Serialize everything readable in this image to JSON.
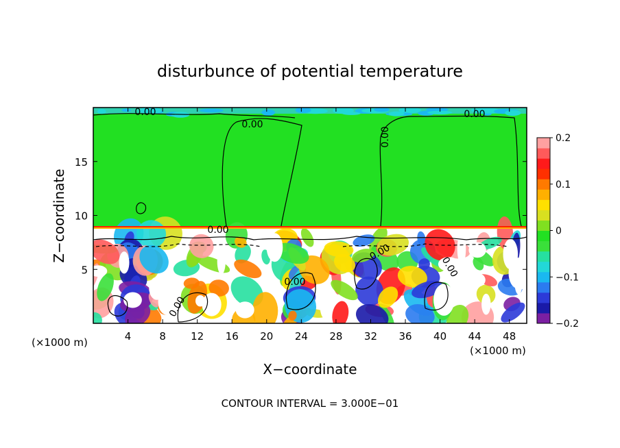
{
  "chart_data": {
    "type": "heatmap",
    "title": "disturbunce of potential temperature",
    "xlabel": "X−coordinate",
    "ylabel": "Z−coordinate",
    "x_unit_left": "(×1000 m)",
    "x_unit_right": "(×1000 m)",
    "xlim": [
      0,
      50
    ],
    "ylim": [
      0,
      20
    ],
    "x_ticks": [
      "4",
      "8",
      "12",
      "16",
      "20",
      "24",
      "28",
      "32",
      "36",
      "40",
      "44",
      "48"
    ],
    "y_ticks": [
      "5",
      "10",
      "15"
    ],
    "x_tick_values": [
      4,
      8,
      12,
      16,
      20,
      24,
      28,
      32,
      36,
      40,
      44,
      48
    ],
    "y_tick_values": [
      5,
      10,
      15
    ],
    "colorbar": {
      "range": [
        -0.2,
        0.2
      ],
      "tick_labels": [
        "0.2",
        "0.1",
        "0",
        "−0.1",
        "−0.2"
      ],
      "tick_values": [
        0.2,
        0.1,
        0,
        -0.1,
        -0.2
      ],
      "colors": [
        "#7b1fa2",
        "#1a1aa8",
        "#2c3ad8",
        "#2b7bf0",
        "#1ab8f0",
        "#22d8d8",
        "#26e0a0",
        "#3ae03a",
        "#22e022",
        "#80e020",
        "#d8e020",
        "#ffe000",
        "#ffb000",
        "#ff7a00",
        "#ff3000",
        "#ff1a1a",
        "#ff5a5a",
        "#ffa0a0"
      ]
    },
    "contour_labels": [
      "0.00",
      "0.00",
      "0.00",
      "0.00",
      "0.00",
      "0.00",
      "0.00",
      "0.00",
      "0.00"
    ],
    "footer": "CONTOUR INTERVAL = 3.000E−01",
    "colors": {
      "background_upper": "#22e022",
      "frame": "#000000"
    }
  }
}
